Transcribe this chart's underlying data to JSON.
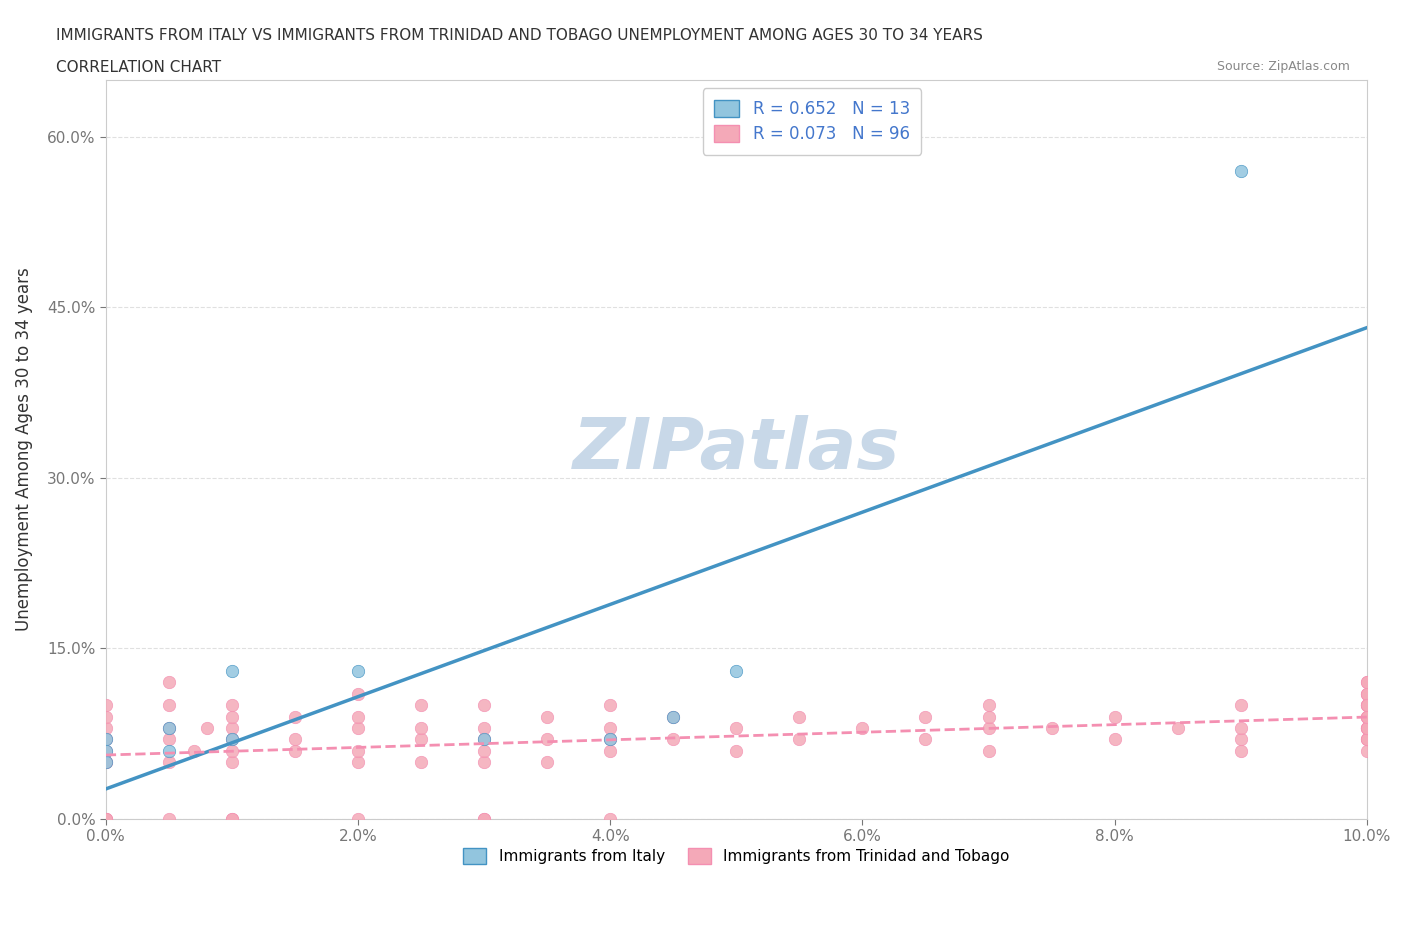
{
  "title_line1": "IMMIGRANTS FROM ITALY VS IMMIGRANTS FROM TRINIDAD AND TOBAGO UNEMPLOYMENT AMONG AGES 30 TO 34 YEARS",
  "title_line2": "CORRELATION CHART",
  "source_text": "Source: ZipAtlas.com",
  "xlabel": "",
  "ylabel": "Unemployment Among Ages 30 to 34 years",
  "xlim": [
    0.0,
    0.1
  ],
  "ylim": [
    0.0,
    0.65
  ],
  "xtick_labels": [
    "0.0%",
    "2.0%",
    "4.0%",
    "6.0%",
    "8.0%",
    "10.0%"
  ],
  "xtick_vals": [
    0.0,
    0.02,
    0.04,
    0.06,
    0.08,
    0.1
  ],
  "ytick_labels": [
    "0.0%",
    "15.0%",
    "30.0%",
    "45.0%",
    "60.0%"
  ],
  "ytick_vals": [
    0.0,
    0.15,
    0.3,
    0.45,
    0.6
  ],
  "italy_color": "#92c5de",
  "tt_color": "#f4a9b8",
  "italy_line_color": "#4393c3",
  "tt_line_color": "#f48fb1",
  "watermark_color": "#c8d8e8",
  "background_color": "#ffffff",
  "grid_color": "#e0e0e0",
  "R_italy": 0.652,
  "N_italy": 13,
  "R_tt": 0.073,
  "N_tt": 96,
  "italy_scatter_x": [
    0.0,
    0.0,
    0.0,
    0.005,
    0.005,
    0.01,
    0.01,
    0.02,
    0.03,
    0.04,
    0.045,
    0.05,
    0.09
  ],
  "italy_scatter_y": [
    0.07,
    0.06,
    0.05,
    0.08,
    0.06,
    0.13,
    0.07,
    0.13,
    0.07,
    0.07,
    0.09,
    0.13,
    0.57
  ],
  "tt_scatter_x": [
    0.0,
    0.0,
    0.0,
    0.0,
    0.0,
    0.0,
    0.0,
    0.0,
    0.0,
    0.0,
    0.005,
    0.005,
    0.005,
    0.005,
    0.005,
    0.005,
    0.007,
    0.008,
    0.01,
    0.01,
    0.01,
    0.01,
    0.01,
    0.01,
    0.01,
    0.01,
    0.015,
    0.015,
    0.015,
    0.02,
    0.02,
    0.02,
    0.02,
    0.02,
    0.02,
    0.025,
    0.025,
    0.025,
    0.025,
    0.03,
    0.03,
    0.03,
    0.03,
    0.03,
    0.03,
    0.03,
    0.035,
    0.035,
    0.035,
    0.04,
    0.04,
    0.04,
    0.04,
    0.04,
    0.045,
    0.045,
    0.05,
    0.05,
    0.055,
    0.055,
    0.06,
    0.065,
    0.065,
    0.07,
    0.07,
    0.07,
    0.07,
    0.075,
    0.08,
    0.08,
    0.085,
    0.09,
    0.09,
    0.09,
    0.09,
    0.1,
    0.1,
    0.1,
    0.1,
    0.1,
    0.1,
    0.1,
    0.1,
    0.1,
    0.1,
    0.1,
    0.1,
    0.1,
    0.1,
    0.1,
    0.1,
    0.1,
    0.1,
    0.1,
    0.1,
    0.1
  ],
  "tt_scatter_y": [
    0.0,
    0.0,
    0.0,
    0.05,
    0.05,
    0.06,
    0.07,
    0.08,
    0.09,
    0.1,
    0.0,
    0.05,
    0.07,
    0.08,
    0.1,
    0.12,
    0.06,
    0.08,
    0.0,
    0.0,
    0.05,
    0.06,
    0.07,
    0.08,
    0.09,
    0.1,
    0.06,
    0.07,
    0.09,
    0.0,
    0.05,
    0.06,
    0.08,
    0.09,
    0.11,
    0.05,
    0.07,
    0.08,
    0.1,
    0.0,
    0.0,
    0.05,
    0.06,
    0.07,
    0.08,
    0.1,
    0.05,
    0.07,
    0.09,
    0.0,
    0.06,
    0.07,
    0.08,
    0.1,
    0.07,
    0.09,
    0.06,
    0.08,
    0.07,
    0.09,
    0.08,
    0.07,
    0.09,
    0.06,
    0.08,
    0.09,
    0.1,
    0.08,
    0.07,
    0.09,
    0.08,
    0.06,
    0.07,
    0.08,
    0.1,
    0.06,
    0.07,
    0.08,
    0.09,
    0.1,
    0.11,
    0.07,
    0.08,
    0.09,
    0.1,
    0.11,
    0.12,
    0.07,
    0.08,
    0.09,
    0.1,
    0.11,
    0.12,
    0.08,
    0.09,
    0.1
  ]
}
